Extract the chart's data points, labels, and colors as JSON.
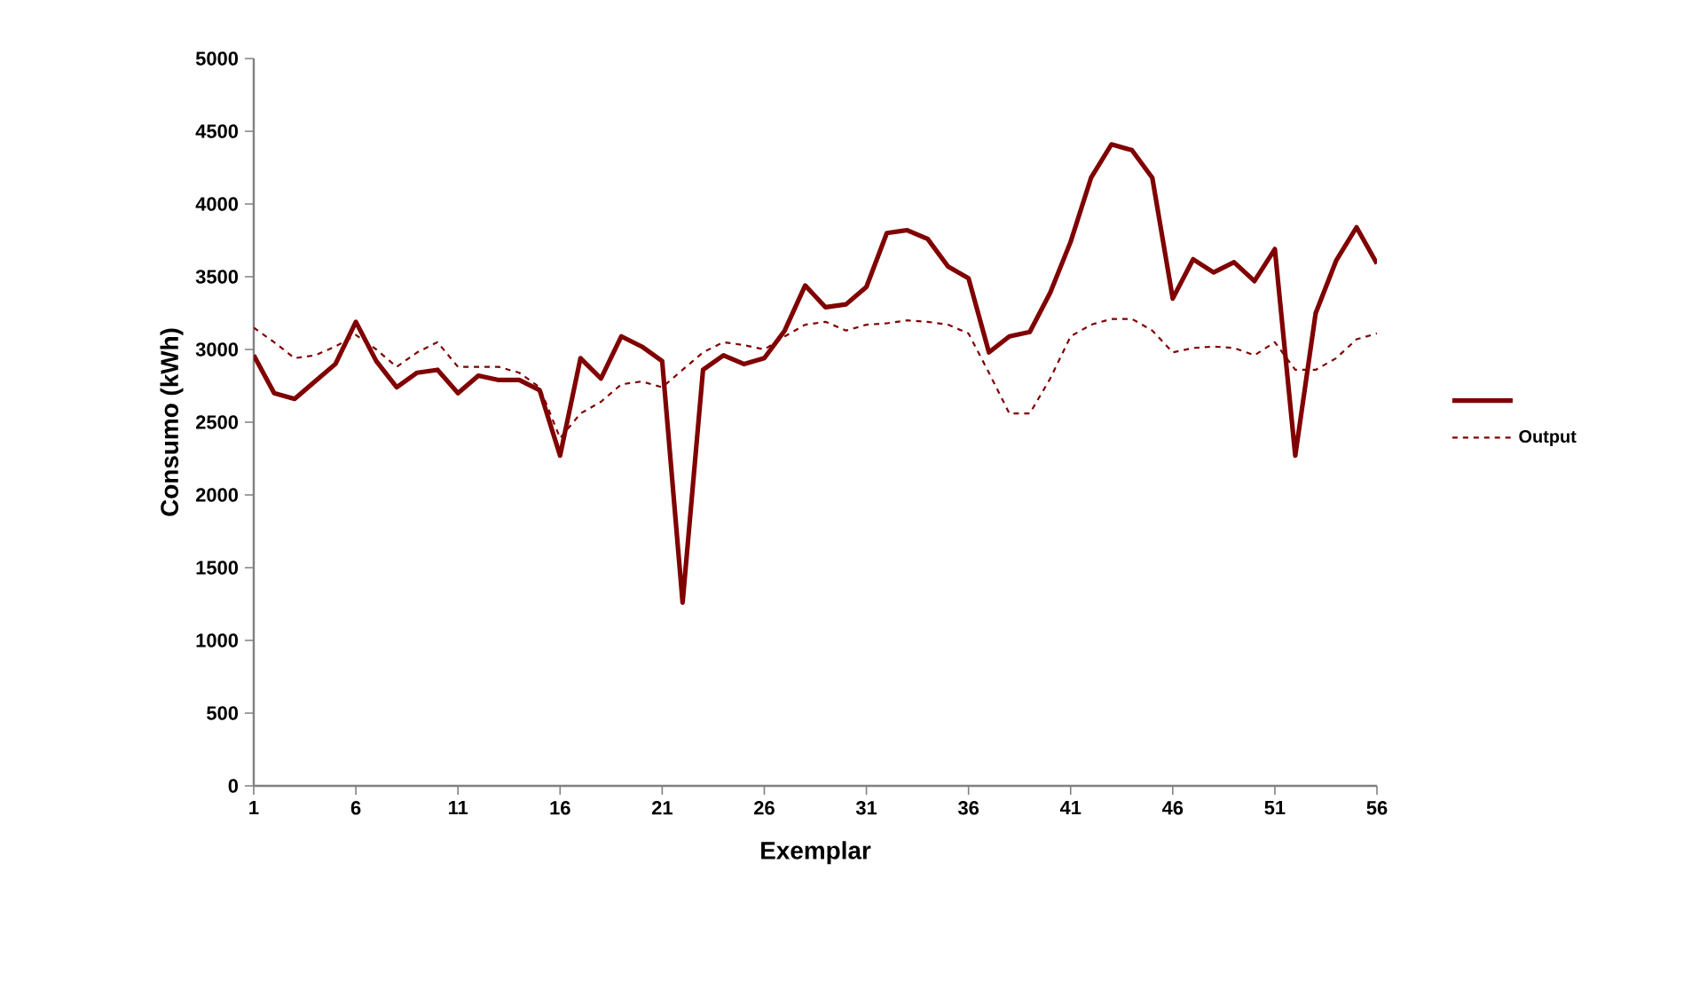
{
  "chart_data": {
    "type": "line",
    "xlabel": "Exemplar",
    "ylabel": "Consumo (kWh)",
    "x": [
      1,
      2,
      3,
      4,
      5,
      6,
      7,
      8,
      9,
      10,
      11,
      12,
      13,
      14,
      15,
      16,
      17,
      18,
      19,
      20,
      21,
      22,
      23,
      24,
      25,
      26,
      27,
      28,
      29,
      30,
      31,
      32,
      33,
      34,
      35,
      36,
      37,
      38,
      39,
      40,
      41,
      42,
      43,
      44,
      45,
      46,
      47,
      48,
      49,
      50,
      51,
      52,
      53,
      54,
      55,
      56
    ],
    "series": [
      {
        "color": "#800000",
        "line_style": "solid",
        "values": [
          2960,
          2700,
          2660,
          2780,
          2900,
          3190,
          2920,
          2740,
          2840,
          2860,
          2700,
          2820,
          2790,
          2790,
          2720,
          2270,
          2940,
          2800,
          3090,
          3020,
          2920,
          1260,
          2860,
          2960,
          2900,
          2940,
          3130,
          3440,
          3290,
          3310,
          3430,
          3800,
          3820,
          3760,
          3570,
          3490,
          2980,
          3090,
          3120,
          3390,
          3740,
          4180,
          4410,
          4370,
          4180,
          3350,
          3620,
          3530,
          3600,
          3470,
          3690,
          2270,
          3250,
          3610,
          3840,
          3590
        ]
      },
      {
        "name": "Output",
        "color": "#800000",
        "line_style": "dashed",
        "values": [
          3150,
          3050,
          2940,
          2960,
          3020,
          3100,
          3000,
          2880,
          2980,
          3050,
          2880,
          2880,
          2880,
          2840,
          2740,
          2390,
          2560,
          2640,
          2760,
          2780,
          2740,
          2860,
          2980,
          3050,
          3030,
          3000,
          3090,
          3170,
          3190,
          3130,
          3170,
          3180,
          3200,
          3190,
          3170,
          3110,
          2840,
          2560,
          2560,
          2800,
          3090,
          3170,
          3210,
          3210,
          3130,
          2980,
          3010,
          3020,
          3010,
          2960,
          3050,
          2860,
          2860,
          2940,
          3070,
          3110
        ]
      }
    ],
    "xlim": [
      1,
      56
    ],
    "xticks": [
      1,
      6,
      11,
      16,
      21,
      26,
      31,
      36,
      41,
      46,
      51,
      56
    ],
    "ylim": [
      0,
      5000
    ],
    "yticks": [
      0,
      500,
      1000,
      1500,
      2000,
      2500,
      3000,
      3500,
      4000,
      4500,
      5000
    ],
    "legend": "right",
    "marker": "none"
  }
}
